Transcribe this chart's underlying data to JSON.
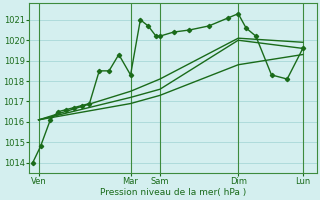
{
  "xlabel": "Pression niveau de la mer( hPa )",
  "ylim": [
    1013.5,
    1021.8
  ],
  "xlim": [
    -0.2,
    14.5
  ],
  "yticks": [
    1014,
    1015,
    1016,
    1017,
    1018,
    1019,
    1020,
    1021
  ],
  "xtick_positions": [
    0.3,
    5.0,
    6.5,
    10.5,
    13.8
  ],
  "xtick_labels": [
    "Ven",
    "Mar",
    "Sam",
    "Dim",
    "Lun"
  ],
  "vlines": [
    0.3,
    5.0,
    6.5,
    10.5,
    13.8
  ],
  "bg_color": "#d4efef",
  "grid_color": "#a8d8d8",
  "line_color": "#1a6b1a",
  "main_series_x": [
    0,
    0.4,
    0.9,
    1.3,
    1.7,
    2.1,
    2.5,
    2.9,
    3.4,
    3.9,
    4.4,
    5.0,
    5.5,
    5.9,
    6.3,
    6.5,
    7.2,
    8.0,
    9.0,
    10.0,
    10.5,
    10.9,
    11.4,
    12.2,
    13.0,
    13.8
  ],
  "main_series_y": [
    1014.0,
    1014.8,
    1016.1,
    1016.5,
    1016.6,
    1016.7,
    1016.8,
    1016.9,
    1018.5,
    1018.5,
    1019.3,
    1018.3,
    1021.0,
    1020.7,
    1020.2,
    1020.2,
    1020.4,
    1020.5,
    1020.7,
    1021.1,
    1021.3,
    1020.6,
    1020.2,
    1018.3,
    1018.1,
    1019.6
  ],
  "straight_lines": [
    {
      "x": [
        0.3,
        5.0,
        6.5,
        10.5,
        13.8
      ],
      "y": [
        1016.1,
        1017.2,
        1017.6,
        1020.0,
        1019.6
      ]
    },
    {
      "x": [
        0.3,
        5.0,
        6.5,
        10.5,
        13.8
      ],
      "y": [
        1016.1,
        1017.5,
        1018.1,
        1020.1,
        1019.9
      ]
    },
    {
      "x": [
        0.3,
        5.0,
        6.5,
        10.5,
        13.8
      ],
      "y": [
        1016.1,
        1016.9,
        1017.3,
        1018.8,
        1019.3
      ]
    }
  ]
}
